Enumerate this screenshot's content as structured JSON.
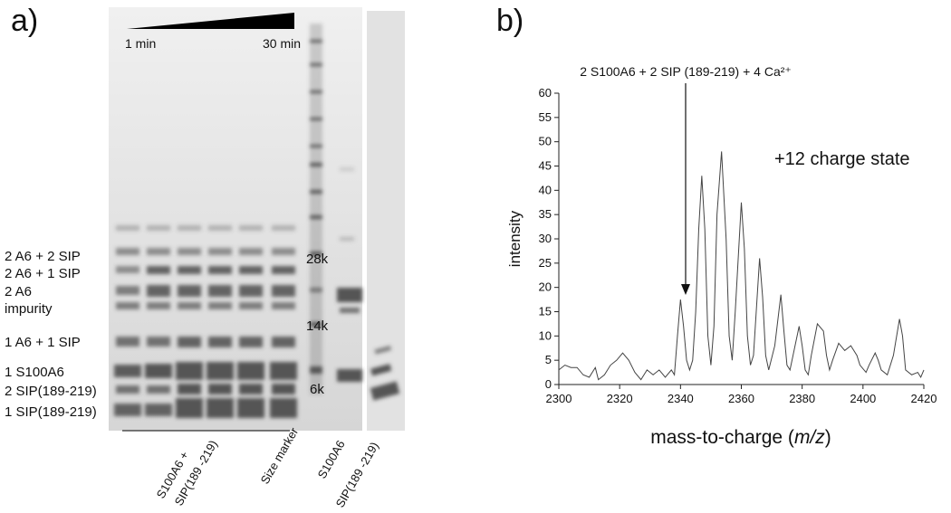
{
  "panel_a": {
    "label": "a)",
    "time_start": "1 min",
    "time_end": "30 min",
    "band_labels": [
      "2 A6 + 2 SIP",
      "2 A6 + 1 SIP",
      "2 A6",
      "impurity",
      "1 A6 + 1 SIP",
      "1 S100A6",
      "2 SIP(189-219)",
      "1 SIP(189-219)"
    ],
    "marker_labels": [
      "28k",
      "14k",
      "6k"
    ],
    "lane_labels": [
      [
        "S100A6 +",
        "SIP(189 -219)"
      ],
      [
        "Size marker"
      ],
      [
        "S100A6"
      ],
      [
        "SIP(189 -219)"
      ]
    ]
  },
  "chart_data": {
    "type": "line",
    "panel_label": "b)",
    "annotation": "2 S100A6 + 2 SIP (189-219) + 4 Ca²⁺",
    "note": "+12 charge state",
    "ylabel": "intensity",
    "xlabel": [
      "mass-to-charge (",
      "m/z",
      ")"
    ],
    "x": [
      2300,
      2302,
      2304,
      2306,
      2308,
      2310,
      2312,
      2313,
      2315,
      2317,
      2319,
      2321,
      2323,
      2325,
      2327,
      2329,
      2331,
      2333,
      2335,
      2337,
      2338,
      2339,
      2340,
      2341,
      2342,
      2343,
      2344,
      2345,
      2346,
      2347,
      2348,
      2349,
      2350,
      2351,
      2352,
      2353.5,
      2355,
      2356,
      2357,
      2358,
      2360,
      2361,
      2362,
      2363,
      2364,
      2366,
      2367,
      2368,
      2369,
      2371,
      2373,
      2374,
      2375,
      2376,
      2377,
      2379,
      2380,
      2381,
      2382,
      2383,
      2385,
      2387,
      2388,
      2389,
      2390,
      2392,
      2394,
      2396,
      2398,
      2399,
      2401,
      2402,
      2404,
      2405,
      2406,
      2408,
      2410,
      2412,
      2413,
      2414,
      2416,
      2418,
      2419,
      2420
    ],
    "values": [
      3,
      4,
      3.5,
      3.5,
      2,
      1.5,
      3.5,
      1,
      2,
      4,
      5,
      6.5,
      5,
      2.5,
      1,
      3,
      2,
      3,
      1.5,
      3,
      2,
      10,
      17.5,
      12,
      5,
      3,
      5,
      15,
      32,
      43,
      32,
      10,
      4,
      12,
      35,
      48,
      30,
      10,
      5,
      15,
      37.5,
      28,
      10,
      4,
      6,
      26,
      18,
      6,
      3,
      8,
      18.5,
      11,
      4,
      3,
      6,
      12,
      8,
      3,
      2,
      6,
      12.5,
      11,
      6,
      3,
      5,
      8.5,
      7,
      8,
      6,
      4,
      2.5,
      4,
      6.5,
      5,
      3,
      2,
      6,
      13.5,
      10,
      3,
      2,
      2.5,
      1.5,
      3
    ],
    "color": "#444444",
    "xlim": [
      2300,
      2420
    ],
    "xticks": [
      2300,
      2320,
      2340,
      2360,
      2380,
      2400,
      2420
    ],
    "ylim": [
      0,
      60
    ],
    "yticks": [
      0,
      5,
      10,
      15,
      20,
      25,
      30,
      35,
      40,
      45,
      50,
      55,
      60
    ]
  }
}
